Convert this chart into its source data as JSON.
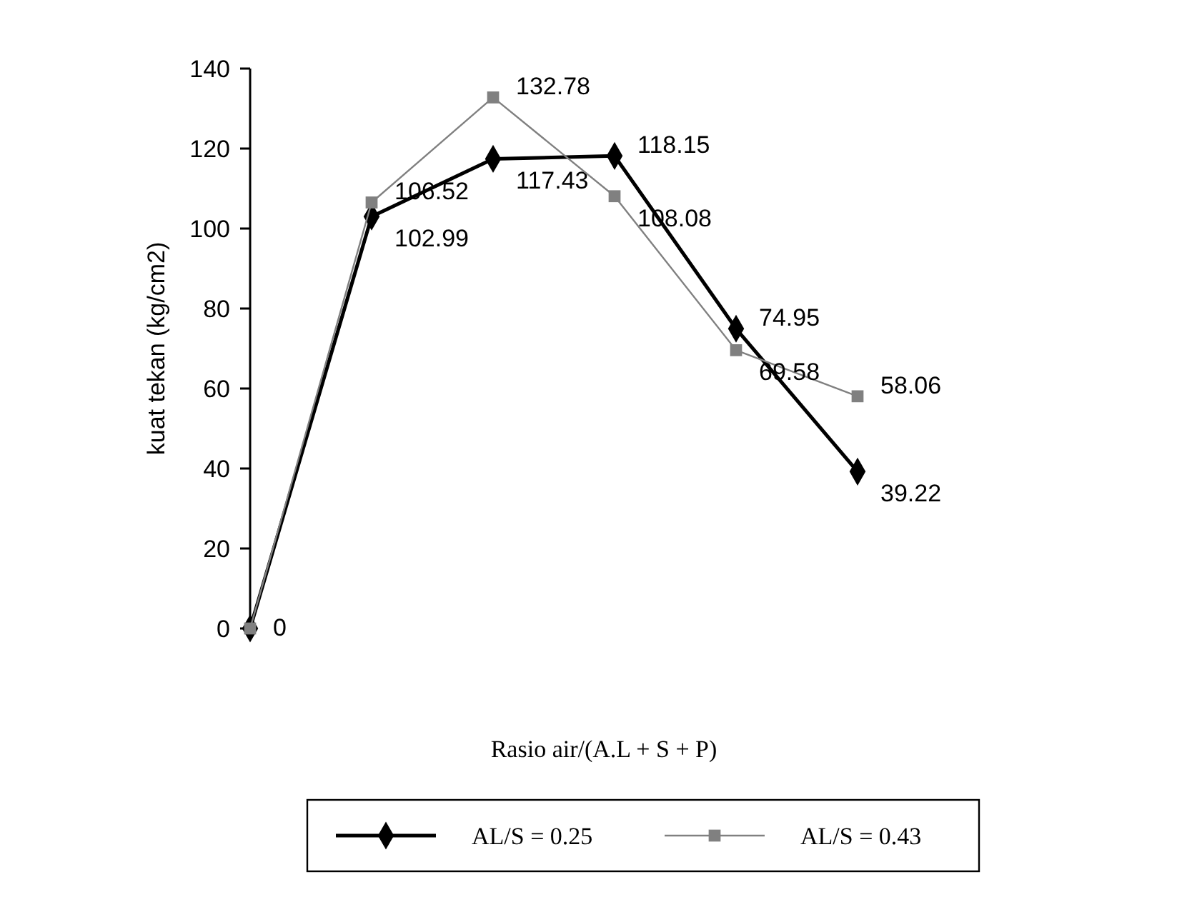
{
  "chart_data": {
    "type": "line",
    "xlabel": "Rasio air/(A.L + S + P)",
    "ylabel": "kuat tekan (kg/cm2)",
    "categories": [
      null,
      null,
      null,
      null,
      null,
      null
    ],
    "series": [
      {
        "name": "AL/S = 0.25",
        "color": "#000000",
        "marker": "diamond",
        "line_style": "solid",
        "values": [
          0,
          102.99,
          117.43,
          118.15,
          74.95,
          39.22
        ],
        "value_labels": [
          "0",
          "102.99",
          "117.43",
          "118.15",
          "74.95",
          "39.22"
        ]
      },
      {
        "name": "AL/S = 0.43",
        "color": "#808080",
        "marker": "square",
        "line_style": "solid",
        "values": [
          0,
          106.52,
          132.78,
          108.08,
          69.58,
          58.06
        ],
        "value_labels": [
          null,
          "106.52",
          "132.78",
          "108.08",
          "69.58",
          "58.06"
        ]
      }
    ],
    "ylim": [
      0,
      140
    ],
    "yticks": [
      0,
      20,
      40,
      60,
      80,
      100,
      120,
      140
    ],
    "grid": false,
    "legend": "bottom",
    "tick_labels": "y"
  }
}
